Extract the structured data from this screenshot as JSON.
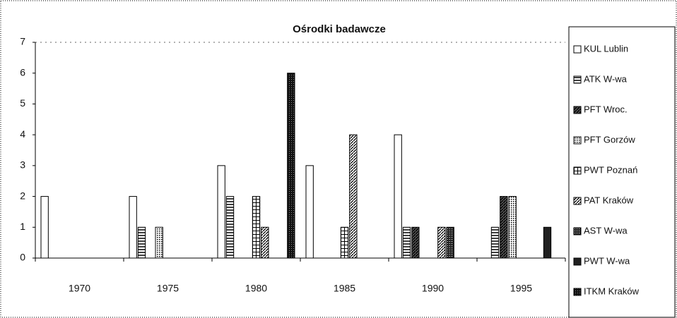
{
  "chart_data": {
    "type": "bar",
    "title": "Ośrodki badawcze",
    "categories": [
      "1970",
      "1975",
      "1980",
      "1985",
      "1990",
      "1995"
    ],
    "series": [
      {
        "name": "KUL Lublin",
        "color": "#ffffff",
        "values": [
          2,
          2,
          3,
          3,
          4,
          0
        ]
      },
      {
        "name": "ATK W-wa",
        "color": "#d8d8d8",
        "values": [
          0,
          1,
          2,
          0,
          1,
          1
        ]
      },
      {
        "name": "PFT Wroc.",
        "color": "#707070",
        "values": [
          0,
          0,
          0,
          0,
          1,
          2
        ]
      },
      {
        "name": "PFT Gorzów",
        "color": "#a0a0a0",
        "values": [
          0,
          1,
          0,
          0,
          0,
          2
        ]
      },
      {
        "name": "PWT Poznań",
        "color": "#c0c0c0",
        "values": [
          0,
          0,
          2,
          1,
          0,
          0
        ]
      },
      {
        "name": "PAT Kraków",
        "color": "#909090",
        "values": [
          0,
          0,
          1,
          4,
          1,
          0
        ]
      },
      {
        "name": "AST W-wa",
        "color": "#606060",
        "values": [
          0,
          0,
          0,
          0,
          1,
          0
        ]
      },
      {
        "name": "PWT W-wa",
        "color": "#202020",
        "values": [
          0,
          0,
          0,
          0,
          0,
          1
        ]
      },
      {
        "name": "ITKM Kraków",
        "color": "#404040",
        "values": [
          0,
          0,
          6,
          0,
          0,
          0
        ]
      }
    ],
    "ylim": [
      0,
      7
    ],
    "yticks": [
      0,
      1,
      2,
      3,
      4,
      5,
      6,
      7
    ],
    "legend": "right"
  }
}
